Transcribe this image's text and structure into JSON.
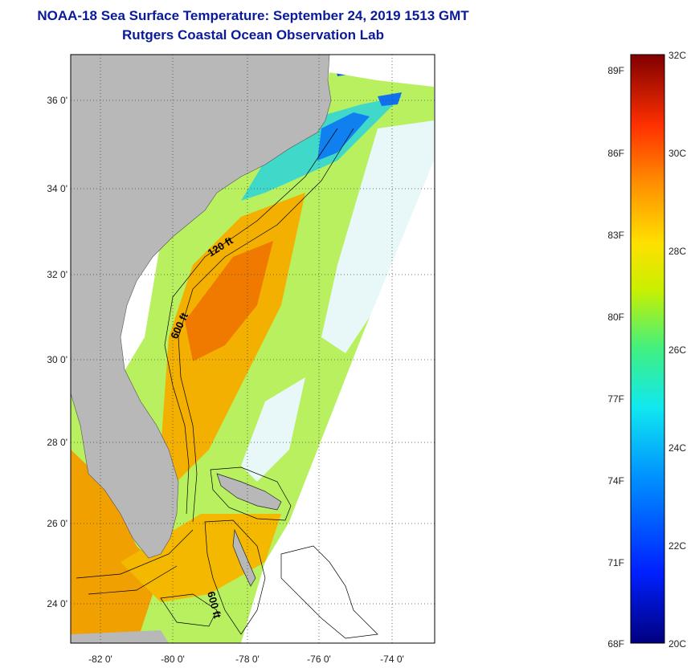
{
  "title": {
    "line1": "NOAA-18 Sea Surface Temperature:  September 24, 2019 1513 GMT",
    "line2": "Rutgers Coastal Ocean Observation Lab"
  },
  "axes": {
    "y_labels": [
      "36 0'",
      "34 0'",
      "32 0'",
      "30 0'",
      "28 0'",
      "26 0'",
      "24 0'"
    ],
    "x_labels": [
      "-82 0'",
      "-80 0'",
      "-78 0'",
      "-76 0'",
      "-74 0'"
    ]
  },
  "contours": {
    "label_120": "120 ft",
    "label_600a": "600 ft",
    "label_600b": "600 ft"
  },
  "colorbar": {
    "f_labels": [
      "89F",
      "86F",
      "83F",
      "80F",
      "77F",
      "74F",
      "71F",
      "68F"
    ],
    "c_labels": [
      "32C",
      "30C",
      "28C",
      "26C",
      "24C",
      "22C",
      "20C"
    ]
  },
  "colors": {
    "land": "#b8b8b8",
    "title": "#0a1a99",
    "cold": "#00007f",
    "warm": "#7f0000"
  }
}
